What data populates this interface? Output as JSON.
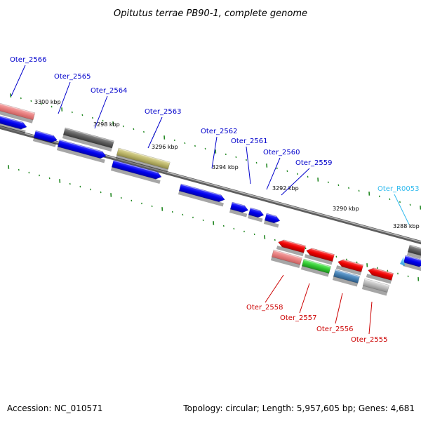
{
  "title": "Opitutus terrae PB90-1, complete genome",
  "footer": {
    "accession": "Accession: NC_010571",
    "info": "Topology: circular; Length: 5,957,605 bp; Genes: 4,681"
  },
  "colors": {
    "forward_label": "#0000cc",
    "reverse_label": "#cc0000",
    "rna_label": "#33bbee",
    "tick": "#228822",
    "backbone": "#777777"
  },
  "kbp_ticks": [
    {
      "label": "3300 kbp"
    },
    {
      "label": "3298 kbp"
    },
    {
      "label": "3296 kbp"
    },
    {
      "label": "3294 kbp"
    },
    {
      "label": "3292 kbp"
    },
    {
      "label": "3290 kbp"
    },
    {
      "label": "3288 kbp"
    }
  ],
  "genes": [
    {
      "id": "Oter_2566",
      "strand": "forward"
    },
    {
      "id": "Oter_2565",
      "strand": "forward"
    },
    {
      "id": "Oter_2564",
      "strand": "forward"
    },
    {
      "id": "Oter_2563",
      "strand": "forward"
    },
    {
      "id": "Oter_2562",
      "strand": "forward"
    },
    {
      "id": "Oter_2561",
      "strand": "forward"
    },
    {
      "id": "Oter_2560",
      "strand": "forward"
    },
    {
      "id": "Oter_2559",
      "strand": "forward"
    },
    {
      "id": "Oter_R0053",
      "strand": "rna"
    },
    {
      "id": "Oter_2558",
      "strand": "reverse"
    },
    {
      "id": "Oter_2557",
      "strand": "reverse"
    },
    {
      "id": "Oter_2556",
      "strand": "reverse"
    },
    {
      "id": "Oter_2555",
      "strand": "reverse"
    }
  ]
}
